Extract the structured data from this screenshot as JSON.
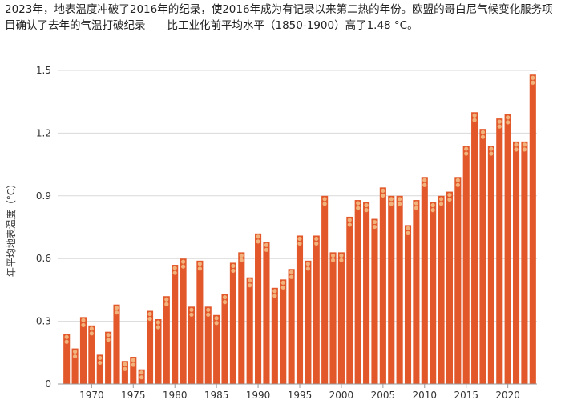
{
  "caption": "2023年，地表温度冲破了2016年的纪录，使2016年成为有记录以来第二热的年份。欧盟的哥白尼气候变化服务项目确认了去年的气温打破纪录——比工业化前平均水平（1850-1900）高了1.48 °C。",
  "colors": {
    "bar": "#e2582a",
    "dot": "#f2b27c",
    "axis": "#999999",
    "grid": "#d9d9d9"
  },
  "chart_data": {
    "type": "bar",
    "ylabel": "年平均地表温度（°C）",
    "ylim": [
      0,
      1.5
    ],
    "yticks": [
      "0",
      "0.3",
      "0.6",
      "0.9",
      "1.2",
      "1.5"
    ],
    "ytick_values": [
      0,
      0.3,
      0.6,
      0.9,
      1.2,
      1.5
    ],
    "xticks": [
      "1970",
      "1975",
      "1980",
      "1985",
      "1990",
      "1995",
      "2000",
      "2005",
      "2010",
      "2015",
      "2020"
    ],
    "xtick_values": [
      1970,
      1975,
      1980,
      1985,
      1990,
      1995,
      2000,
      2005,
      2010,
      2015,
      2020
    ],
    "x": [
      1967,
      1968,
      1969,
      1970,
      1971,
      1972,
      1973,
      1974,
      1975,
      1976,
      1977,
      1978,
      1979,
      1980,
      1981,
      1982,
      1983,
      1984,
      1985,
      1986,
      1987,
      1988,
      1989,
      1990,
      1991,
      1992,
      1993,
      1994,
      1995,
      1996,
      1997,
      1998,
      1999,
      2000,
      2001,
      2002,
      2003,
      2004,
      2005,
      2006,
      2007,
      2008,
      2009,
      2010,
      2011,
      2012,
      2013,
      2014,
      2015,
      2016,
      2017,
      2018,
      2019,
      2020,
      2021,
      2022,
      2023
    ],
    "values": [
      0.24,
      0.17,
      0.32,
      0.28,
      0.14,
      0.25,
      0.38,
      0.11,
      0.13,
      0.07,
      0.35,
      0.31,
      0.42,
      0.57,
      0.6,
      0.37,
      0.59,
      0.37,
      0.33,
      0.43,
      0.58,
      0.63,
      0.51,
      0.72,
      0.68,
      0.46,
      0.5,
      0.55,
      0.71,
      0.59,
      0.71,
      0.9,
      0.63,
      0.63,
      0.8,
      0.88,
      0.87,
      0.79,
      0.94,
      0.9,
      0.9,
      0.76,
      0.88,
      0.99,
      0.87,
      0.9,
      0.92,
      0.99,
      1.14,
      1.3,
      1.22,
      1.14,
      1.27,
      1.29,
      1.16,
      1.16,
      1.48
    ]
  }
}
